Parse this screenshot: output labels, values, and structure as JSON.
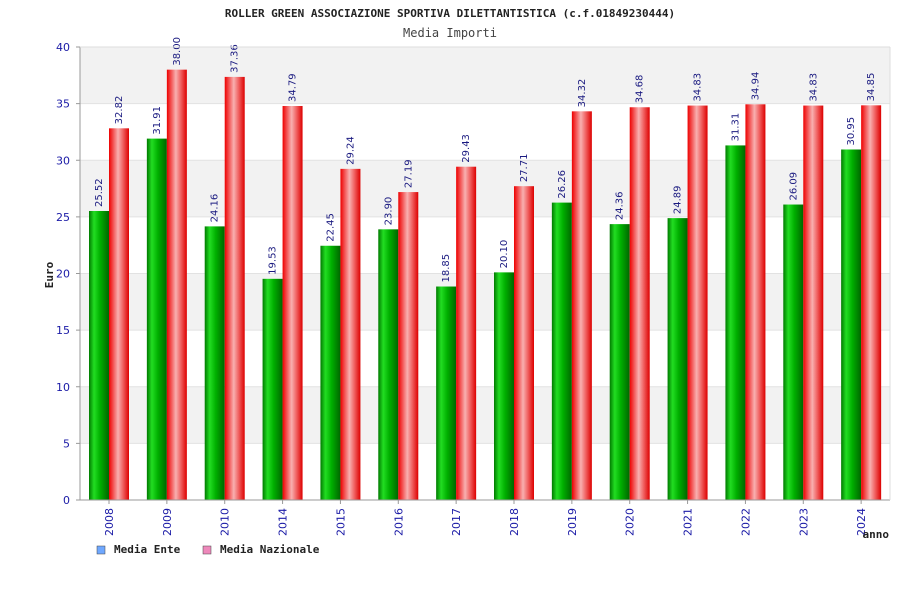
{
  "chart_data": {
    "type": "bar",
    "title": "ROLLER GREEN ASSOCIAZIONE SPORTIVA DILETTANTISTICA (c.f.01849230444)",
    "subtitle": "Media Importi",
    "xlabel": "anno",
    "ylabel": "Euro",
    "ylim": [
      0,
      40
    ],
    "yticks": [
      0,
      5,
      10,
      15,
      20,
      25,
      30,
      35,
      40
    ],
    "categories": [
      "2008",
      "2009",
      "2010",
      "2014",
      "2015",
      "2016",
      "2017",
      "2018",
      "2019",
      "2020",
      "2021",
      "2022",
      "2023",
      "2024"
    ],
    "series": [
      {
        "name": "Media Ente",
        "color": "#00aa00",
        "legend_color": "#6fa8ff",
        "values": [
          25.52,
          31.91,
          24.16,
          19.53,
          22.45,
          23.9,
          18.85,
          20.1,
          26.26,
          24.36,
          24.89,
          31.31,
          26.09,
          30.95
        ],
        "labels": [
          "25.52",
          "31.91",
          "24.16",
          "19.53",
          "22.45",
          "23.90",
          "18.85",
          "20.10",
          "26.26",
          "24.36",
          "24.89",
          "31.31",
          "26.09",
          "30.95"
        ]
      },
      {
        "name": "Media Nazionale",
        "color": "#ee1111",
        "legend_color": "#ee88bb",
        "values": [
          32.82,
          38.0,
          37.36,
          34.79,
          29.24,
          27.19,
          29.43,
          27.71,
          34.32,
          34.68,
          34.83,
          34.94,
          34.83,
          34.85
        ],
        "labels": [
          "32.82",
          "38.00",
          "37.36",
          "34.79",
          "29.24",
          "27.19",
          "29.43",
          "27.71",
          "34.32",
          "34.68",
          "34.83",
          "34.94",
          "34.83",
          "34.85"
        ]
      }
    ],
    "grid": true,
    "legend_position": "bottom-left"
  }
}
